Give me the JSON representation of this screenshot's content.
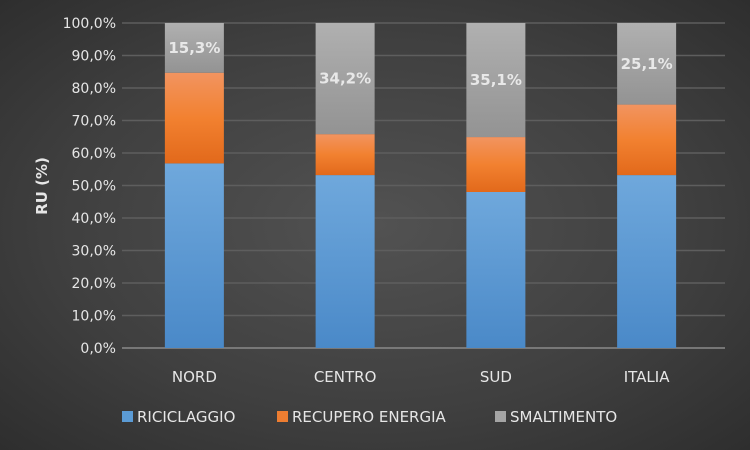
{
  "chart_data": {
    "type": "bar",
    "stacked": true,
    "categories": [
      "NORD",
      "CENTRO",
      "SUD",
      "ITALIA"
    ],
    "series": [
      {
        "name": "RICICLAGGIO",
        "color": "#5b9bd5",
        "values": [
          56.8,
          53.2,
          48.0,
          53.2
        ]
      },
      {
        "name": "RECUPERO ENERGIA",
        "color": "#ed7d31",
        "values": [
          27.9,
          12.6,
          16.9,
          21.7
        ]
      },
      {
        "name": "SMALTIMENTO",
        "color": "#a5a5a5",
        "values": [
          15.3,
          34.2,
          35.1,
          25.1
        ]
      }
    ],
    "data_labels": {
      "series": "SMALTIMENTO",
      "labels": [
        "15,3%",
        "34,2%",
        "35,1%",
        "25,1%"
      ]
    },
    "ylabel": "RU (%)",
    "xlabel": "",
    "ylim": [
      0,
      100
    ],
    "yticks": [
      "0,0%",
      "10,0%",
      "20,0%",
      "30,0%",
      "40,0%",
      "50,0%",
      "60,0%",
      "70,0%",
      "80,0%",
      "90,0%",
      "100,0%"
    ],
    "grid": true,
    "legend": "bottom"
  }
}
